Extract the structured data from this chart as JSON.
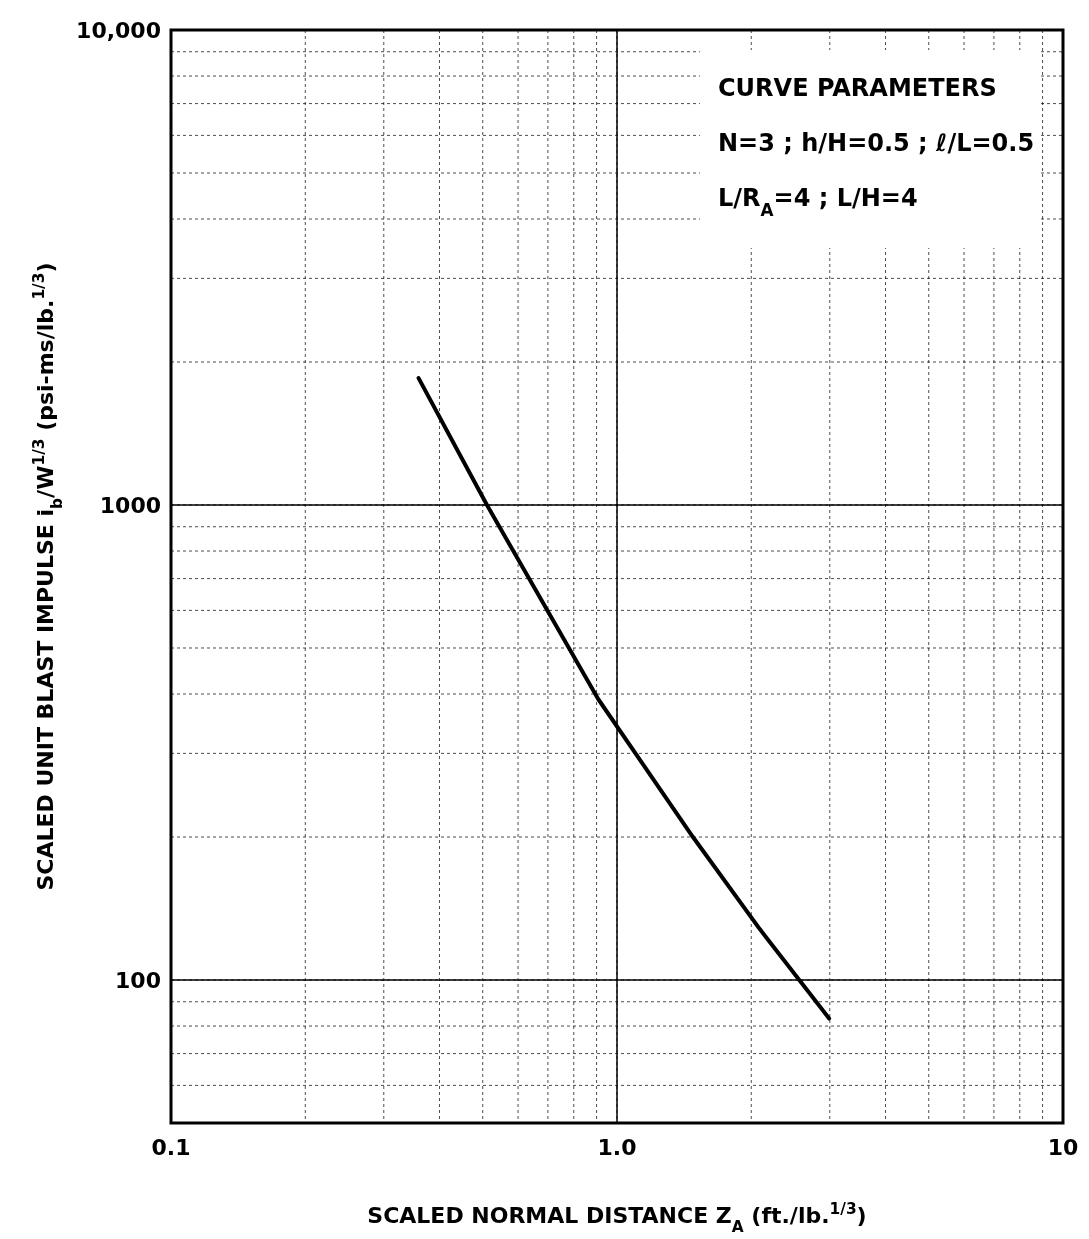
{
  "chart_data": {
    "type": "line",
    "xlabel": "SCALED NORMAL DISTANCE Z$_{A}$ (ft./lb.$^{1/3}$)",
    "ylabel": "SCALED UNIT BLAST IMPULSE i$_{b}$/W$^{1/3}$ (psi-ms/lb.$^{1/3}$)",
    "annotations": [
      "CURVE PARAMETERS",
      "N=3 ; h/H=0.5 ; ℓ/L=0.5",
      "L/R$_{A}$=4 ; L/H=4"
    ],
    "log": "xy",
    "grid": true,
    "xlim": [
      0.1,
      10
    ],
    "ylim": [
      50,
      10000
    ],
    "xticks": [
      0.1,
      {
        "value": 1,
        "label": "1.0"
      },
      10
    ],
    "yticks": [
      100,
      1000,
      {
        "value": 10000,
        "label": "10,000"
      }
    ],
    "series": [
      {
        "color": "#000000",
        "x": [
          0.359,
          0.511,
          0.908,
          1.48,
          2.09,
          2.99
        ],
        "values": [
          1850,
          1000,
          390,
          200,
          128,
          83
        ]
      }
    ]
  }
}
